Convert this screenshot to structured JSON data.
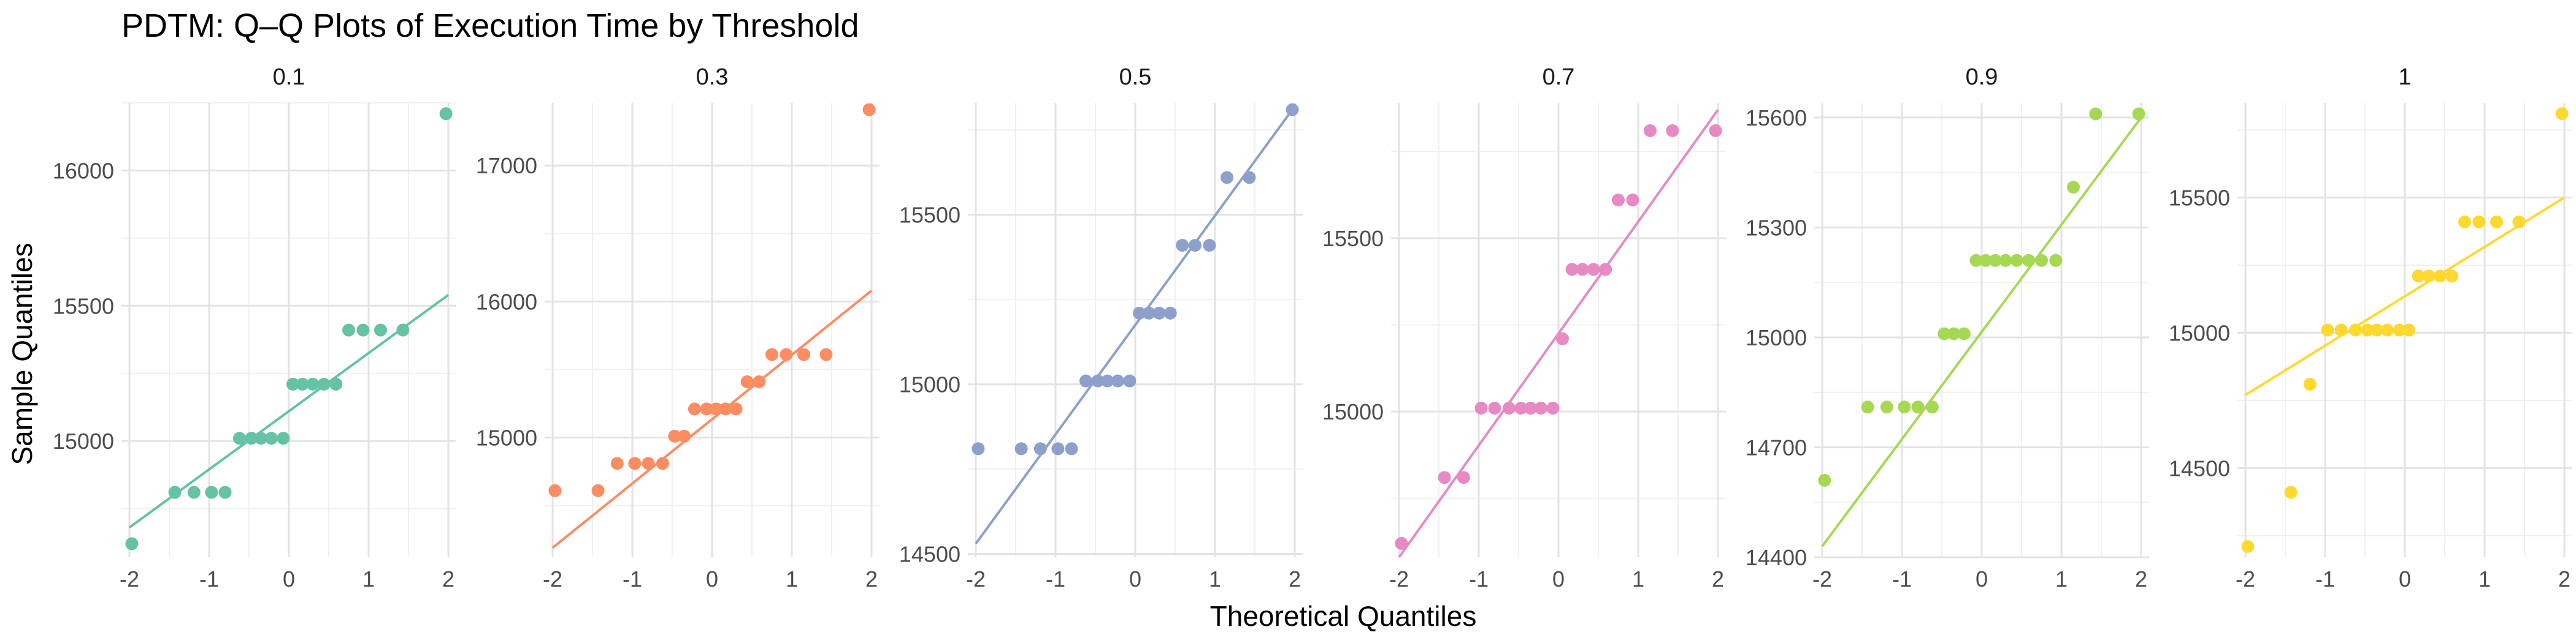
{
  "chart_data": {
    "type": "scatter",
    "title": "PDTM: Q–Q Plots of Execution Time by Threshold",
    "xlabel": "Theoretical Quantiles",
    "ylabel": "Sample Quantiles",
    "x_ticks": [
      "-2",
      "-1",
      "0",
      "1",
      "2"
    ],
    "xlim": [
      -2.1,
      2.1
    ],
    "grid": true,
    "legend": "none",
    "panels": [
      {
        "name": "0.1",
        "color": "#66c2a5",
        "ylim": [
          14570,
          16250
        ],
        "y_ticks": [
          15000,
          15500,
          16000
        ],
        "y_tick_labels": [
          "15000",
          "15500",
          "16000"
        ],
        "line": [
          [
            -2,
            14680
          ],
          [
            2,
            15540
          ]
        ],
        "points": [
          [
            -1.97,
            14620
          ],
          [
            -1.43,
            14810
          ],
          [
            -1.19,
            14810
          ],
          [
            -0.97,
            14810
          ],
          [
            -0.8,
            14810
          ],
          [
            -0.62,
            15010
          ],
          [
            -0.47,
            15010
          ],
          [
            -0.35,
            15010
          ],
          [
            -0.22,
            15010
          ],
          [
            -0.07,
            15010
          ],
          [
            0.05,
            15210
          ],
          [
            0.17,
            15210
          ],
          [
            0.3,
            15210
          ],
          [
            0.44,
            15210
          ],
          [
            0.59,
            15210
          ],
          [
            0.75,
            15410
          ],
          [
            0.93,
            15410
          ],
          [
            1.15,
            15410
          ],
          [
            1.43,
            15410
          ],
          [
            1.97,
            16210
          ]
        ]
      },
      {
        "name": "0.3",
        "color": "#fc8d62",
        "ylim": [
          14120,
          17460
        ],
        "y_ticks": [
          15000,
          16000,
          17000
        ],
        "y_tick_labels": [
          "15000",
          "16000",
          "17000"
        ],
        "line": [
          [
            -2,
            14190
          ],
          [
            2,
            16080
          ]
        ],
        "points": [
          [
            -1.97,
            14610
          ],
          [
            -1.43,
            14610
          ],
          [
            -1.19,
            14810
          ],
          [
            -0.97,
            14810
          ],
          [
            -0.8,
            14810
          ],
          [
            -0.62,
            14810
          ],
          [
            -0.47,
            15010
          ],
          [
            -0.35,
            15010
          ],
          [
            -0.22,
            15210
          ],
          [
            -0.07,
            15210
          ],
          [
            0.05,
            15210
          ],
          [
            0.17,
            15210
          ],
          [
            0.3,
            15210
          ],
          [
            0.44,
            15410
          ],
          [
            0.59,
            15410
          ],
          [
            0.75,
            15610
          ],
          [
            0.93,
            15610
          ],
          [
            1.15,
            15610
          ],
          [
            1.43,
            15610
          ],
          [
            1.97,
            17410
          ]
        ]
      },
      {
        "name": "0.5",
        "color": "#8da0cb",
        "ylim": [
          14490,
          15830
        ],
        "y_ticks": [
          14500,
          15000,
          15500
        ],
        "y_tick_labels": [
          "14500",
          "15000",
          "15500"
        ],
        "line": [
          [
            -2,
            14530
          ],
          [
            2,
            15820
          ]
        ],
        "points": [
          [
            -1.97,
            14810
          ],
          [
            -1.43,
            14810
          ],
          [
            -1.19,
            14810
          ],
          [
            -0.97,
            14810
          ],
          [
            -0.8,
            14810
          ],
          [
            -0.62,
            15010
          ],
          [
            -0.47,
            15010
          ],
          [
            -0.35,
            15010
          ],
          [
            -0.22,
            15010
          ],
          [
            -0.07,
            15010
          ],
          [
            0.05,
            15210
          ],
          [
            0.17,
            15210
          ],
          [
            0.3,
            15210
          ],
          [
            0.44,
            15210
          ],
          [
            0.59,
            15410
          ],
          [
            0.75,
            15410
          ],
          [
            0.93,
            15410
          ],
          [
            1.15,
            15610
          ],
          [
            1.43,
            15610
          ],
          [
            1.97,
            15810
          ]
        ]
      },
      {
        "name": "0.7",
        "color": "#e78ac3",
        "ylim": [
          14580,
          15890
        ],
        "y_ticks": [
          15000,
          15500
        ],
        "y_tick_labels": [
          "15000",
          "15500"
        ],
        "line": [
          [
            -2,
            14580
          ],
          [
            2,
            15870
          ]
        ],
        "points": [
          [
            -1.97,
            14620
          ],
          [
            -1.43,
            14810
          ],
          [
            -1.19,
            14810
          ],
          [
            -0.97,
            15010
          ],
          [
            -0.8,
            15010
          ],
          [
            -0.62,
            15010
          ],
          [
            -0.47,
            15010
          ],
          [
            -0.35,
            15010
          ],
          [
            -0.22,
            15010
          ],
          [
            -0.07,
            15010
          ],
          [
            0.05,
            15210
          ],
          [
            0.17,
            15410
          ],
          [
            0.3,
            15410
          ],
          [
            0.44,
            15410
          ],
          [
            0.59,
            15410
          ],
          [
            0.75,
            15610
          ],
          [
            0.93,
            15610
          ],
          [
            1.15,
            15810
          ],
          [
            1.43,
            15810
          ],
          [
            1.97,
            15810
          ]
        ]
      },
      {
        "name": "0.9",
        "color": "#a6d854",
        "ylim": [
          14400,
          15640
        ],
        "y_ticks": [
          14400,
          14700,
          15000,
          15300,
          15600
        ],
        "y_tick_labels": [
          "14400",
          "14700",
          "15000",
          "15300",
          "15600"
        ],
        "line": [
          [
            -2,
            14430
          ],
          [
            2,
            15600
          ]
        ],
        "points": [
          [
            -1.97,
            14610
          ],
          [
            -1.43,
            14810
          ],
          [
            -1.19,
            14810
          ],
          [
            -0.97,
            14810
          ],
          [
            -0.8,
            14810
          ],
          [
            -0.62,
            14810
          ],
          [
            -0.47,
            15010
          ],
          [
            -0.35,
            15010
          ],
          [
            -0.22,
            15010
          ],
          [
            -0.07,
            15210
          ],
          [
            0.05,
            15210
          ],
          [
            0.17,
            15210
          ],
          [
            0.3,
            15210
          ],
          [
            0.44,
            15210
          ],
          [
            0.59,
            15210
          ],
          [
            0.75,
            15210
          ],
          [
            0.93,
            15210
          ],
          [
            1.15,
            15410
          ],
          [
            1.43,
            15610
          ],
          [
            1.97,
            15610
          ]
        ]
      },
      {
        "name": "1",
        "color": "#ffd92f",
        "ylim": [
          14170,
          15850
        ],
        "y_ticks": [
          14500,
          15000,
          15500
        ],
        "y_tick_labels": [
          "14500",
          "15000",
          "15500"
        ],
        "line": [
          [
            -2,
            14770
          ],
          [
            2,
            15500
          ]
        ],
        "points": [
          [
            -1.97,
            14210
          ],
          [
            -1.43,
            14410
          ],
          [
            -1.19,
            14810
          ],
          [
            -0.97,
            15010
          ],
          [
            -0.8,
            15010
          ],
          [
            -0.62,
            15010
          ],
          [
            -0.47,
            15010
          ],
          [
            -0.35,
            15010
          ],
          [
            -0.22,
            15010
          ],
          [
            -0.07,
            15010
          ],
          [
            0.05,
            15010
          ],
          [
            0.17,
            15210
          ],
          [
            0.3,
            15210
          ],
          [
            0.44,
            15210
          ],
          [
            0.59,
            15210
          ],
          [
            0.75,
            15410
          ],
          [
            0.93,
            15410
          ],
          [
            1.15,
            15410
          ],
          [
            1.43,
            15410
          ],
          [
            1.97,
            15810
          ]
        ]
      }
    ]
  }
}
